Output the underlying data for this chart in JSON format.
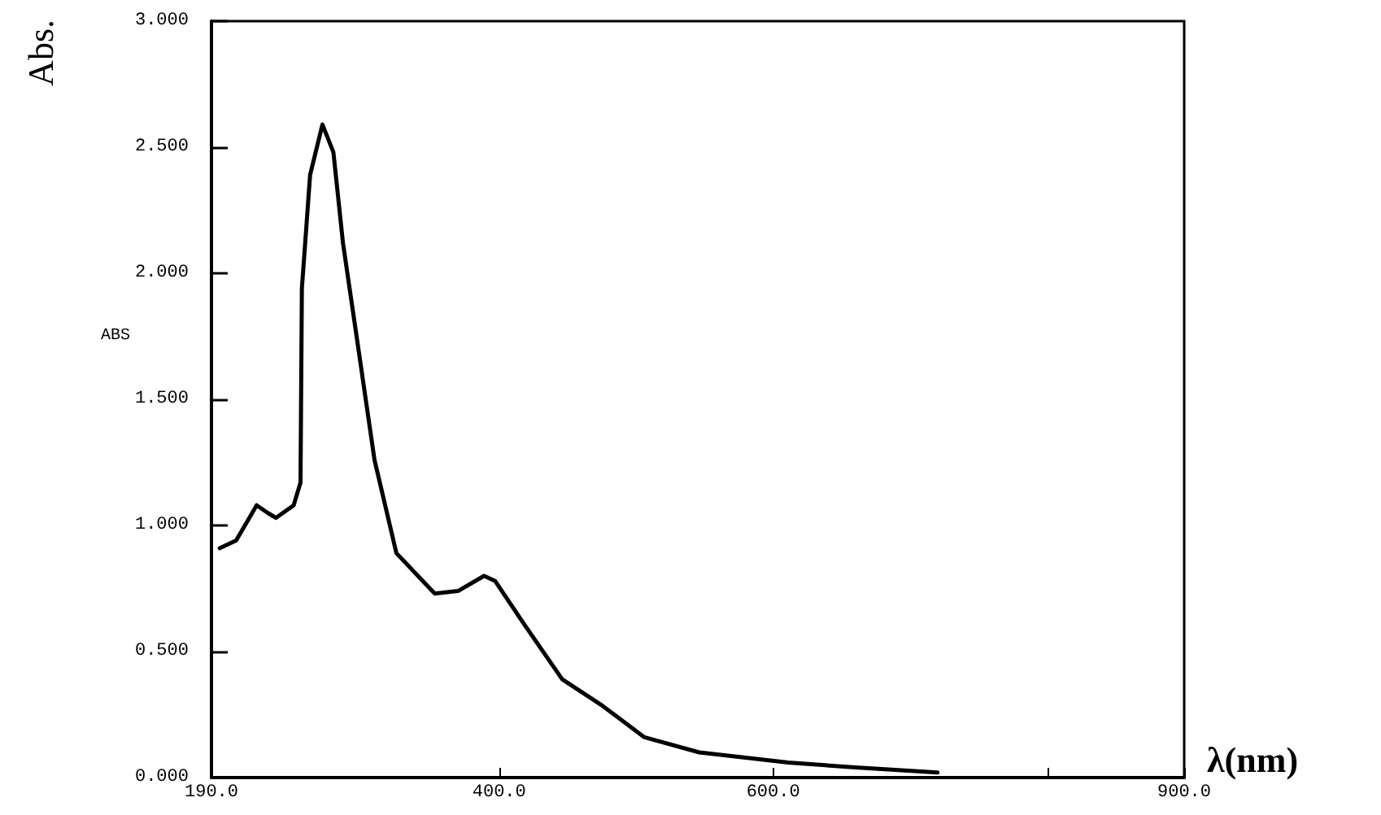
{
  "chart_data": {
    "type": "line",
    "xlabel": "λ(nm)",
    "ylabel": "Abs.",
    "annotations": [
      "ABS"
    ],
    "x": [
      196,
      208,
      223,
      231,
      237,
      250,
      255,
      256,
      262,
      271,
      279,
      286,
      297,
      309,
      325,
      353,
      370,
      389,
      397,
      418,
      446,
      474,
      506,
      546,
      611,
      660,
      720
    ],
    "series": [
      {
        "color": "#000000",
        "values": [
          0.91,
          0.94,
          1.08,
          1.05,
          1.03,
          1.08,
          1.17,
          1.94,
          2.39,
          2.59,
          2.48,
          2.12,
          1.71,
          1.26,
          0.89,
          0.73,
          0.74,
          0.8,
          0.78,
          0.61,
          0.39,
          0.29,
          0.16,
          0.1,
          0.06,
          0.04,
          0.02
        ]
      }
    ],
    "xlim": [
      190,
      900
    ],
    "xticks": [
      {
        "value": 190,
        "label": "190.0"
      },
      {
        "value": 400,
        "label": "400.0"
      },
      {
        "value": 600,
        "label": "600.0"
      },
      {
        "value": 800,
        "label": null
      },
      {
        "value": 900,
        "label": "900.0"
      }
    ],
    "ylim": [
      0,
      3
    ],
    "yticks": [
      {
        "value": 0,
        "label": "0.000"
      },
      {
        "value": 0.5,
        "label": "0.500"
      },
      {
        "value": 1,
        "label": "1.000"
      },
      {
        "value": 1.5,
        "label": "1.500"
      },
      {
        "value": 2,
        "label": "2.000"
      },
      {
        "value": 2.5,
        "label": "2.500"
      },
      {
        "value": 3,
        "label": "3.000"
      }
    ],
    "grid": false,
    "marker": "none",
    "line_style": "solid"
  }
}
